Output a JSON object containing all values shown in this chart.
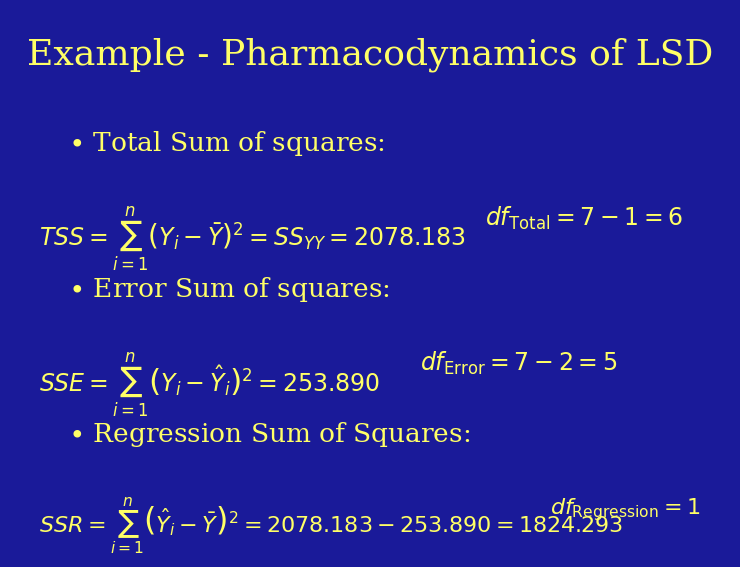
{
  "title": "Example - Pharmacodynamics of LSD",
  "bg_color": "#1a1a99",
  "title_color": "#ffff66",
  "text_color": "#ffff66",
  "title_fontsize": 26,
  "bullet_fontsize": 19,
  "formula_fontsize": 17,
  "bullet1": "Total Sum of squares:",
  "bullet2": "Error Sum of squares:",
  "bullet3": "Regression Sum of Squares:",
  "formula1a": "$TSS = \\sum_{i=1}^{n}\\left(Y_i - \\bar{Y}\\right)^2 = SS_{YY} = 2078.183$",
  "formula1b": "$df_{\\mathrm{Total}} = 7 - 1 = 6$",
  "formula2a": "$SSE = \\sum_{i=1}^{n}\\left(Y_i - \\hat{Y}_i\\right)^2 = 253.890$",
  "formula2b": "$df_{\\mathrm{Error}} = 7 - 2 = 5$",
  "formula3a": "$SSR = \\sum_{i=1}^{n}\\left(\\hat{Y}_i - \\bar{Y}\\right)^2 = 2078.183 - 253.890 = 1824.293$",
  "formula3b": "$df_{\\mathrm{Regression}} = 1$"
}
